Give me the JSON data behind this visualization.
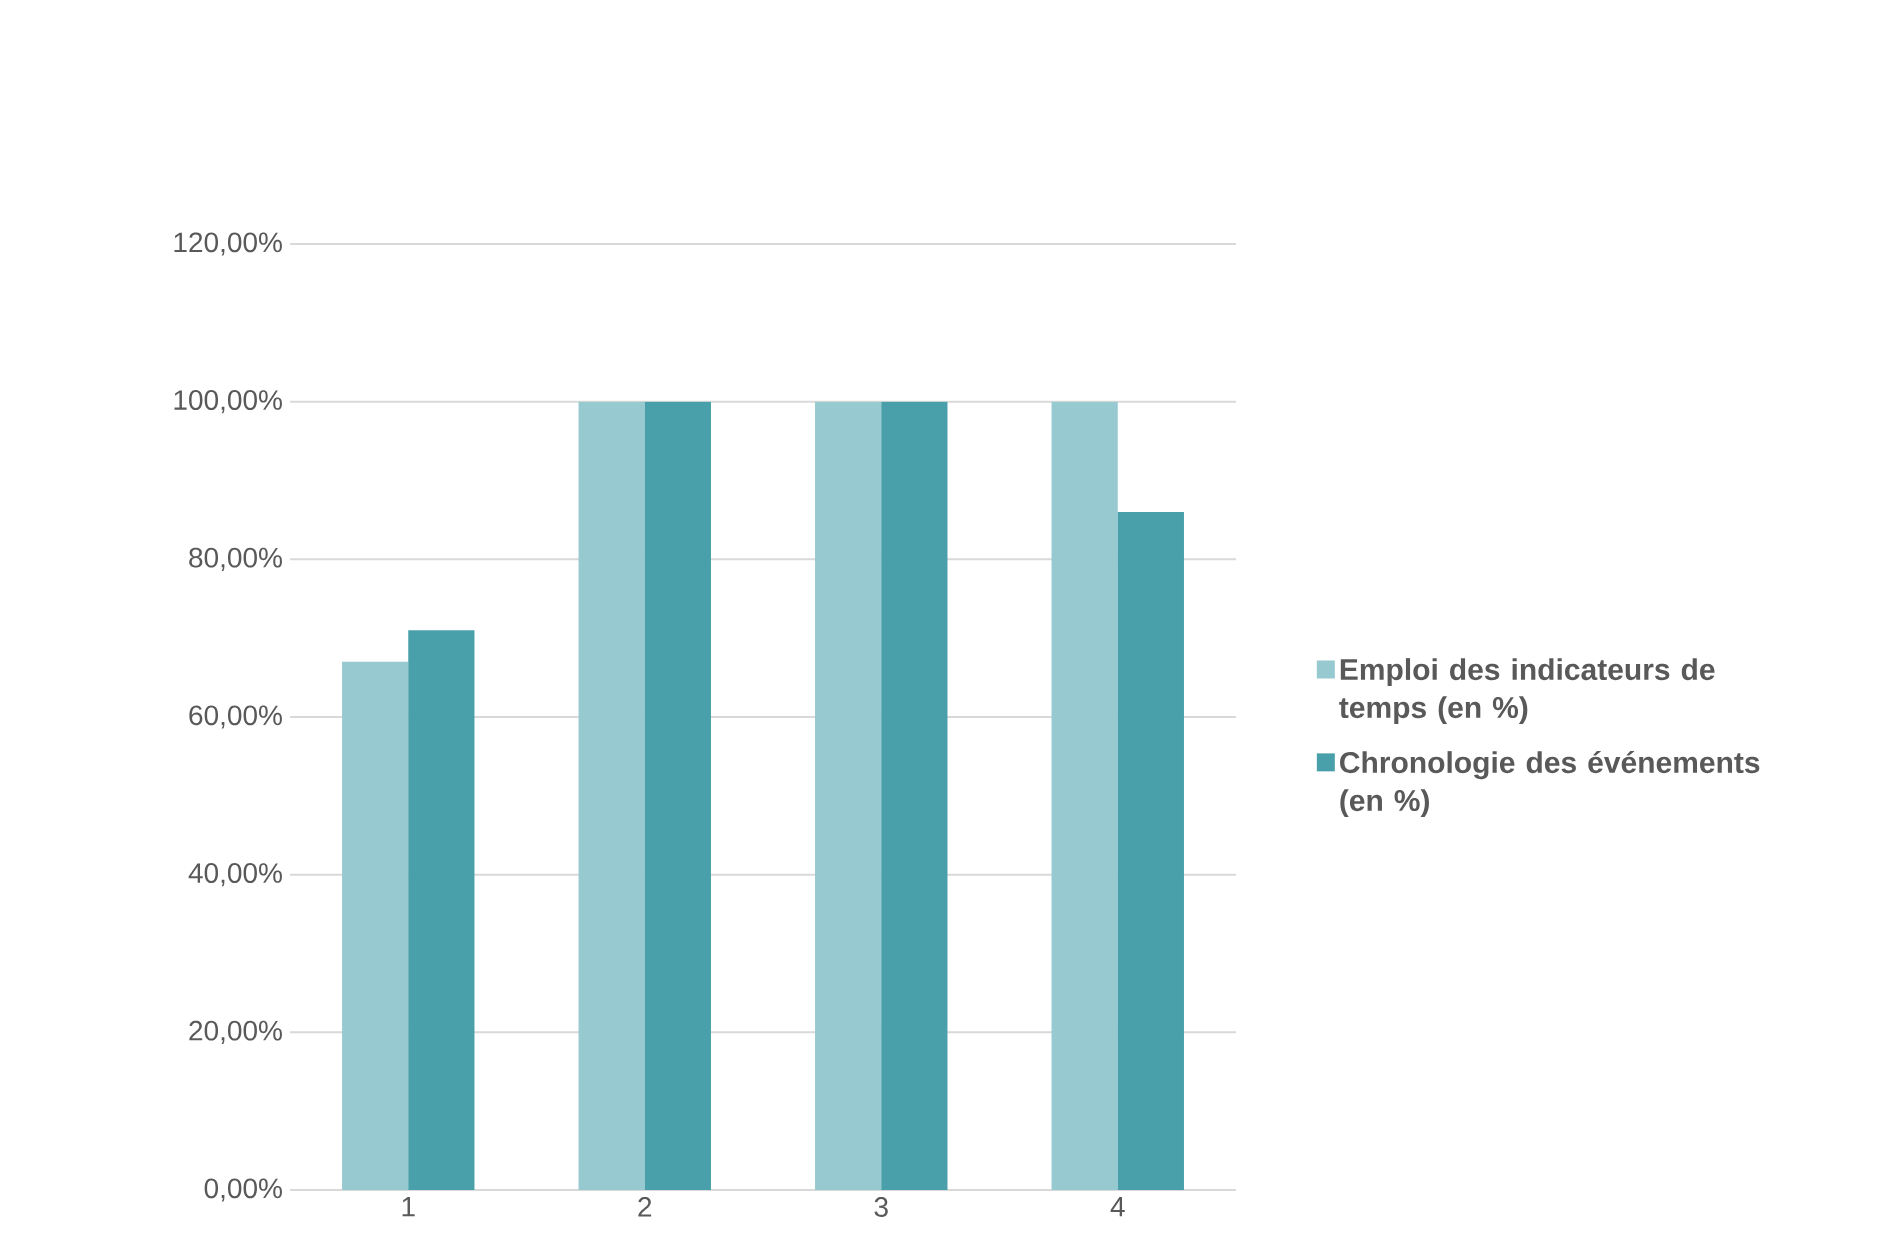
{
  "chart_data": {
    "type": "bar",
    "categories": [
      "1",
      "2",
      "3",
      "4"
    ],
    "series": [
      {
        "name": "Emploi des indicateurs de temps (en %)",
        "color": "#96cad0",
        "values": [
          67,
          100,
          100,
          100
        ]
      },
      {
        "name": "Chronologie des événements (en %)",
        "color": "#4aa0aa",
        "values": [
          71,
          100,
          100,
          86
        ]
      }
    ],
    "ylim": [
      0,
      120
    ],
    "yticks": [
      {
        "value": 0,
        "label": "0,00%"
      },
      {
        "value": 20,
        "label": "20,00%"
      },
      {
        "value": 40,
        "label": "40,00%"
      },
      {
        "value": 60,
        "label": "60,00%"
      },
      {
        "value": 80,
        "label": "80,00%"
      },
      {
        "value": 100,
        "label": "100,00%"
      },
      {
        "value": 120,
        "label": "120,00%"
      }
    ],
    "grid": "y",
    "legend": "right"
  }
}
